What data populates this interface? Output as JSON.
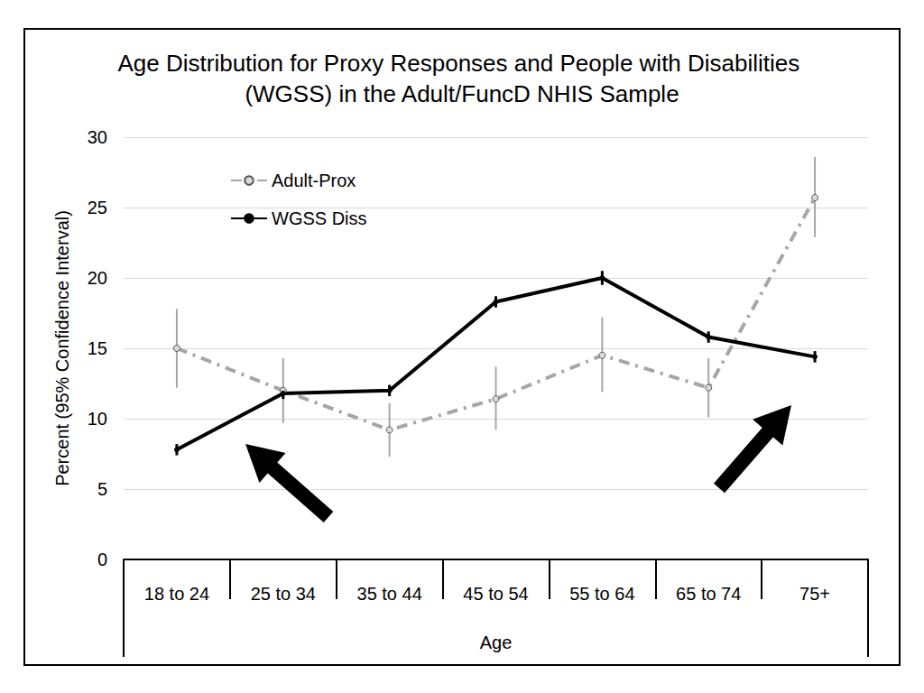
{
  "chart_data": {
    "type": "line",
    "title": "Age Distribution for Proxy Responses and People with Disabilities (WGSS) in the Adult/FuncD NHIS Sample",
    "x_label": "Age",
    "y_label": "Percent (95% Confidence Interval)",
    "categories": [
      "18 to 24",
      "25 to 34",
      "35 to 44",
      "45 to 54",
      "55 to 64",
      "65 to 74",
      "75+"
    ],
    "series": [
      {
        "name": "Adult-Prox",
        "color": "#a6a6a6",
        "line_style": "dashdot",
        "marker": "circle",
        "values": [
          15.0,
          12.0,
          9.2,
          11.4,
          14.5,
          12.2,
          25.7
        ],
        "ci_low": [
          12.2,
          9.7,
          7.3,
          9.2,
          11.9,
          10.1,
          22.9
        ],
        "ci_high": [
          17.8,
          14.3,
          11.1,
          13.7,
          17.2,
          14.3,
          28.6
        ]
      },
      {
        "name": "WGSS Diss",
        "color": "#000000",
        "line_style": "solid",
        "marker": "circle",
        "values": [
          7.8,
          11.8,
          12.0,
          18.3,
          20.0,
          15.8,
          14.4
        ],
        "ci_low": [
          7.4,
          11.4,
          11.6,
          17.9,
          19.5,
          15.4,
          14.0
        ],
        "ci_high": [
          8.2,
          12.2,
          12.4,
          18.7,
          20.5,
          16.2,
          14.8
        ]
      }
    ],
    "ylim": [
      0,
      30
    ],
    "yticks": [
      0,
      5,
      10,
      15,
      20,
      25,
      30
    ],
    "grid": true,
    "legend": "upper left"
  }
}
